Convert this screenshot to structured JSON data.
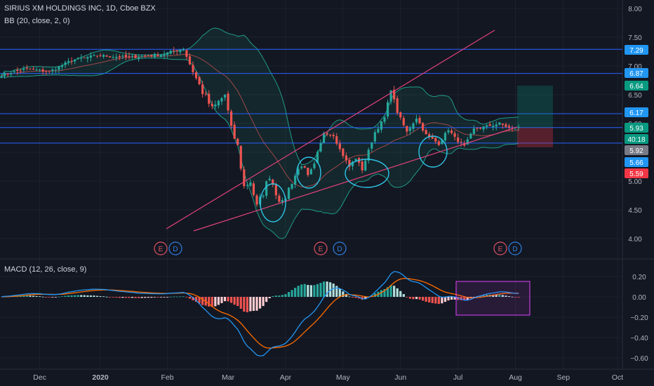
{
  "header": {
    "title": "SIRIUS XM HOLDINGS INC, 1D, Cboe BZX",
    "bb_indicator": "BB (20, close, 2, 0)",
    "macd_indicator": "MACD (12, 26, close, 9)"
  },
  "colors": {
    "background": "#131722",
    "up": "#26a69a",
    "down": "#ef5350",
    "bb_band": "#1e9b87",
    "bb_basis": "#c0504d",
    "hline": "#2962ff",
    "trendline": "#e0427a",
    "circle": "#2ec4e6",
    "macd_line": "#2196f3",
    "signal_line": "#ff6d00",
    "hist_up": "#26a69a",
    "hist_up_light": "#b2dfdb",
    "hist_down": "#ef5350",
    "hist_down_light": "#ffcdd2",
    "macd_box": "#e040fb"
  },
  "chart_data": [
    {
      "type": "candlestick",
      "title": "SIRIUS XM HOLDINGS INC, 1D, Cboe BZX",
      "x_ticks": [
        "Dec",
        "2020",
        "Feb",
        "Mar",
        "Apr",
        "May",
        "Jun",
        "Jul",
        "Aug",
        "Sep",
        "Oct"
      ],
      "y_ticks": [
        "8.00",
        "7.50",
        "7.00",
        "6.50",
        "6.00",
        "5.50",
        "5.00",
        "4.50",
        "4.00"
      ],
      "ylim": [
        3.85,
        8.05
      ],
      "anchors": [
        {
          "day": 0,
          "close": 6.85
        },
        {
          "day": 8,
          "close": 6.95
        },
        {
          "day": 15,
          "close": 6.9
        },
        {
          "day": 22,
          "close": 7.1
        },
        {
          "day": 30,
          "close": 7.18
        },
        {
          "day": 40,
          "close": 7.15
        },
        {
          "day": 50,
          "close": 7.2
        },
        {
          "day": 57,
          "close": 7.3
        },
        {
          "day": 60,
          "close": 6.9
        },
        {
          "day": 63,
          "close": 6.55
        },
        {
          "day": 66,
          "close": 6.25
        },
        {
          "day": 70,
          "close": 6.5
        },
        {
          "day": 72,
          "close": 5.9
        },
        {
          "day": 74,
          "close": 5.6
        },
        {
          "day": 76,
          "close": 4.9
        },
        {
          "day": 78,
          "close": 5.0
        },
        {
          "day": 80,
          "close": 4.55
        },
        {
          "day": 82,
          "close": 4.8
        },
        {
          "day": 84,
          "close": 5.1
        },
        {
          "day": 86,
          "close": 4.8
        },
        {
          "day": 88,
          "close": 4.6
        },
        {
          "day": 91,
          "close": 5.0
        },
        {
          "day": 94,
          "close": 5.3
        },
        {
          "day": 96,
          "close": 5.05
        },
        {
          "day": 98,
          "close": 5.25
        },
        {
          "day": 101,
          "close": 5.85
        },
        {
          "day": 104,
          "close": 5.8
        },
        {
          "day": 106,
          "close": 5.55
        },
        {
          "day": 109,
          "close": 5.25
        },
        {
          "day": 111,
          "close": 5.4
        },
        {
          "day": 113,
          "close": 5.2
        },
        {
          "day": 117,
          "close": 5.85
        },
        {
          "day": 120,
          "close": 6.1
        },
        {
          "day": 122,
          "close": 6.6
        },
        {
          "day": 124,
          "close": 6.2
        },
        {
          "day": 127,
          "close": 5.85
        },
        {
          "day": 130,
          "close": 6.1
        },
        {
          "day": 133,
          "close": 5.8
        },
        {
          "day": 137,
          "close": 5.65
        },
        {
          "day": 140,
          "close": 5.9
        },
        {
          "day": 142,
          "close": 5.75
        },
        {
          "day": 145,
          "close": 5.6
        },
        {
          "day": 148,
          "close": 5.9
        },
        {
          "day": 152,
          "close": 5.95
        },
        {
          "day": 156,
          "close": 6.0
        },
        {
          "day": 160,
          "close": 5.9
        },
        {
          "day": 162,
          "close": 5.93
        }
      ],
      "price_levels": [
        {
          "label": "7.29",
          "color": "#2196f3"
        },
        {
          "label": "6.87",
          "color": "#2196f3"
        },
        {
          "label": "6.64",
          "color": "#089981"
        },
        {
          "label": "6.17",
          "color": "#2196f3"
        },
        {
          "label": "5.93",
          "color": "#089981"
        },
        {
          "label": "40:18",
          "color": "#089981"
        },
        {
          "label": "5.92",
          "color": "#787b86"
        },
        {
          "label": "5.66",
          "color": "#2196f3"
        },
        {
          "label": "5.59",
          "color": "#f23645"
        }
      ],
      "earnings_markers": [
        {
          "label": "E",
          "kind": "earnings"
        },
        {
          "label": "D",
          "kind": "dividend"
        },
        {
          "label": "E",
          "kind": "earnings"
        },
        {
          "label": "D",
          "kind": "dividend"
        },
        {
          "label": "E",
          "kind": "earnings"
        },
        {
          "label": "D",
          "kind": "dividend"
        }
      ]
    },
    {
      "type": "line",
      "title": "MACD (12, 26, close, 9)",
      "y_ticks": [
        "0.20",
        "0.00",
        "−0.20",
        "−0.40",
        "−0.60"
      ],
      "ylim": [
        -0.7,
        0.28
      ],
      "series": [
        {
          "name": "MACD",
          "role": "macd"
        },
        {
          "name": "Signal",
          "role": "signal"
        }
      ]
    }
  ]
}
